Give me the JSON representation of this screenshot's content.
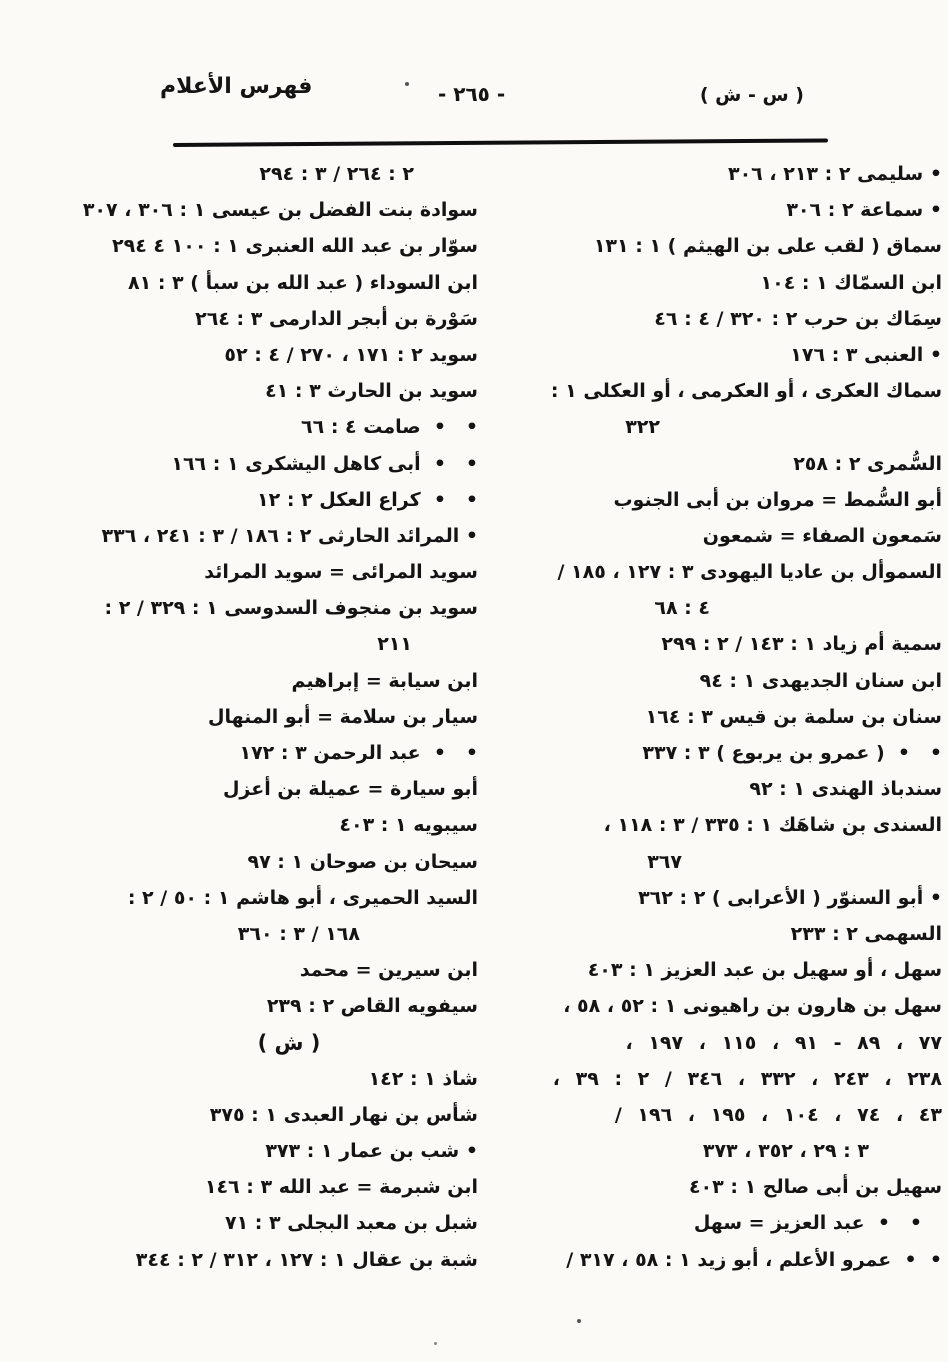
{
  "header": {
    "section_range": "( س - ش )",
    "page_number": "- ٢٦٥ -",
    "index_title": "فهرس الأعلام"
  },
  "columns": {
    "right": [
      {
        "t": "• سليمى ٢ : ٢١٣ ، ٣٠٦"
      },
      {
        "t": "• سماعة ٢ : ٣٠٦"
      },
      {
        "t": "سماق ( لقب على بن الهيثم ) ١ : ١٣١"
      },
      {
        "t": "ابن السمّاك ١ : ١٠٤"
      },
      {
        "t": "سِمَاك بن حرب ٢ : ٣٢٠ / ٤ : ٤٦"
      },
      {
        "t": "• العنبى ٣ : ١٧٦"
      },
      {
        "t": "سماك العكرى ، أو العكرمى ، أو العكلى ١ :"
      },
      {
        "t": "٣٢٢",
        "indent": 282
      },
      {
        "t": "السُّمرى ٢ : ٢٥٨"
      },
      {
        "t": "أبو السُّمط = مروان بن أبى الجنوب"
      },
      {
        "t": "سَمعون الصفاء = شمعون"
      },
      {
        "t": "السموأل بن عاديا اليهودى ٣ : ١٢٧ ، ١٨٥ /"
      },
      {
        "t": "٤ : ٦٨",
        "indent": 232
      },
      {
        "t": "سمية أم زياد ١ : ١٤٣ / ٢ : ٢٩٩"
      },
      {
        "t": "ابن سنان الجديهدى ١ : ٩٤"
      },
      {
        "t": "سنان بن سلمة بن قيس ٣ : ١٦٤"
      },
      {
        "t": "•   •  ( عمرو بن يربوع ) ٣ : ٣٣٧"
      },
      {
        "t": "سندباذ الهندى ١ : ٩٢"
      },
      {
        "t": "السندى بن شاهَك ١ : ٣٣٥ / ٣ : ١١٨ ،"
      },
      {
        "t": "٣٦٧",
        "indent": 260
      },
      {
        "t": "• أبو السنوّر ( الأعرابى ) ٢ : ٣٦٢"
      },
      {
        "t": "السهمى ٢ : ٢٣٣"
      },
      {
        "t": "سهل ، أو سهيل بن عبد العزيز ١ : ٤٠٣"
      },
      {
        "t": "سهل بن هارون بن راهيونى ١ : ٥٢ ، ٥٨ ،"
      },
      {
        "t": "٧٧ ، ٨٩ - ٩١ ، ١١٥ ، ١٩٧ ،",
        "cls": "spread"
      },
      {
        "t": "٢٣٨ ، ٢٤٣ ، ٣٣٢ ، ٣٤٦ / ٢ : ٣٩ ،",
        "cls": "spread"
      },
      {
        "t": "٤٣ ، ٧٤ ، ١٠٤ ، ١٩٥ ، ١٩٦ /",
        "cls": "spread"
      },
      {
        "t": "٣ : ٢٩ ، ٣٥٢ ، ٣٧٣",
        "indent": 73
      },
      {
        "t": "سهيل بن أبى صالح ١ : ٤٠٣"
      },
      {
        "t": "•   •  عبد العزيز = سهل",
        "indent": 20
      },
      {
        "t": "•  •  عمرو الأعلم ، أبو زيد ١ : ٥٨ ، ٣١٧ /"
      }
    ],
    "left": [
      {
        "t": "٢ : ٢٦٤ / ٣ : ٢٩٤",
        "indent": 64
      },
      {
        "t": "سوادة بنت الفضل بن عيسى ١ : ٣٠٦ ، ٣٠٧"
      },
      {
        "t": "سوّار بن عبد الله العنبرى ١ : ١٠٠ ٤ ٢٩٤"
      },
      {
        "t": "ابن السوداء ( عبد الله بن سبأ ) ٣ : ٨١"
      },
      {
        "t": "سَوْرة بن أبجر الدارمى ٣ : ٢٦٤"
      },
      {
        "t": "سويد ٢ : ١٧١ ، ٢٧٠ / ٤ : ٥٢"
      },
      {
        "t": "سويد بن الحارث ٣ : ٤١"
      },
      {
        "t": "•   •  صامت ٤ : ٦٦"
      },
      {
        "t": "•   •  أبى كاهل اليشكرى ١ : ١٦٦"
      },
      {
        "t": "•   •  كراع العكل ٢ : ١٢"
      },
      {
        "t": "• المرائد الحارثى ٢ : ١٨٦ / ٣ : ٢٤١ ، ٣٣٦"
      },
      {
        "t": "سويد المرائى = سويد المرائد"
      },
      {
        "t": "سويد بن منجوف السدوسى ١ : ٣٢٩ / ٢ :"
      },
      {
        "t": "٢١١",
        "indent": 66
      },
      {
        "t": "ابن سيابة = إبراهيم"
      },
      {
        "t": "سيار بن سلامة = أبو المنهال"
      },
      {
        "t": "•   •  عبد الرحمن ٣ : ١٧٢"
      },
      {
        "t": "أبو سيارة = عميلة بن أعزل"
      },
      {
        "t": "سيبويه ١ : ٤٠٣"
      },
      {
        "t": "سيحان بن صوحان ١ : ٩٧"
      },
      {
        "t": "السيد الحميرى ، أبو هاشم ١ : ٥٠ / ٢ :"
      },
      {
        "t": "١٦٨ / ٣ : ٣٦٠",
        "indent": 118
      },
      {
        "t": "ابن سيرين = محمد"
      },
      {
        "t": "سيفويه القاص ٢ : ٢٣٩"
      },
      {
        "t": "( ش )",
        "align": "center",
        "cls": "section"
      },
      {
        "t": "شاذ ١ : ١٤٢"
      },
      {
        "t": "شأس بن نهار العبدى ١ : ٣٧٥"
      },
      {
        "t": "• شب بن عمار ١ : ٣٧٣"
      },
      {
        "t": "ابن شبرمة = عبد الله ٣ : ١٤٦"
      },
      {
        "t": "شبل بن معبد البجلى ٣ : ٧١"
      },
      {
        "t": "شبة بن عقال ١ : ١٢٧ ، ٣١٢ / ٢ : ٣٤٤"
      }
    ]
  }
}
